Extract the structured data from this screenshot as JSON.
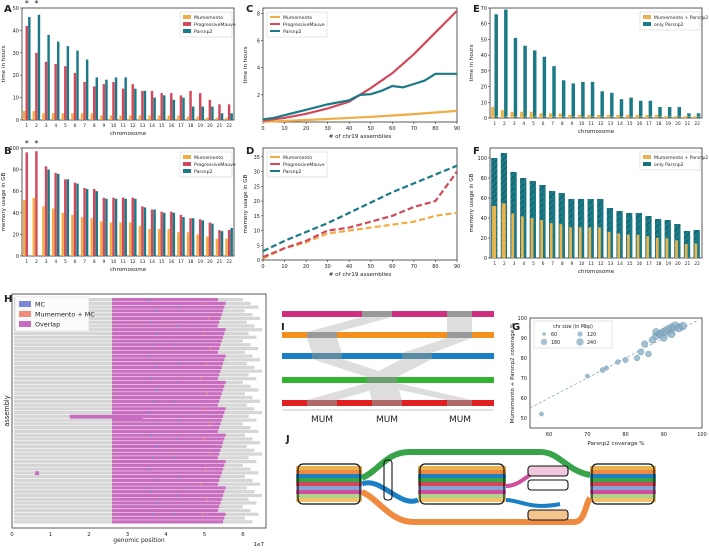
{
  "colors": {
    "mumemento": "#f0ad45",
    "pmauve": "#d1495b",
    "parsnp2": "#1b7a86",
    "combo": "#e8b450",
    "only": "#1b7a86",
    "mc": "#7e89d6",
    "mmc": "#ef8c7a",
    "overlap": "#c96cbf",
    "grey": "#d6d6d6",
    "scatter": "#7da5bd"
  },
  "panels": {
    "A": "A",
    "B": "B",
    "C": "C",
    "D": "D",
    "E": "E",
    "F": "F",
    "G": "G",
    "H": "H",
    "I": "I",
    "J": "J"
  },
  "chart_data": [
    {
      "id": "A",
      "type": "bar",
      "title": "",
      "categories": [
        "1",
        "2",
        "3",
        "4",
        "5",
        "6",
        "7",
        "8",
        "9",
        "10",
        "11",
        "12",
        "13",
        "14",
        "15",
        "16",
        "17",
        "18",
        "19",
        "20",
        "21",
        "22"
      ],
      "xlabel": "chromosome",
      "ylabel": "time in hours",
      "ylim": [
        0,
        50
      ],
      "yticks": [
        0,
        10,
        20,
        30,
        40,
        50
      ],
      "legend": {
        "position": "top-right",
        "entries": [
          "Mumemento",
          "ProgressiveMauve",
          "Parsnp2"
        ]
      },
      "markers": {
        "categories": [
          "1",
          "2"
        ],
        "symbol": "*"
      },
      "series": [
        {
          "name": "Mumemento",
          "values": [
            4,
            4,
            3,
            3,
            3,
            3,
            3,
            3,
            2,
            2,
            2,
            2,
            2,
            2,
            2,
            2,
            2,
            1.5,
            1.5,
            1,
            1,
            1
          ]
        },
        {
          "name": "ProgressiveMauve",
          "values": [
            42,
            30,
            26,
            25,
            24,
            21,
            17,
            15,
            16,
            17,
            14,
            16,
            13,
            13,
            12,
            12,
            11,
            13,
            12,
            9,
            7,
            7
          ]
        },
        {
          "name": "Parsnp2",
          "values": [
            46,
            47,
            38,
            35,
            33,
            31,
            27,
            19,
            18,
            19,
            19,
            14,
            13,
            10,
            11,
            9,
            10,
            6,
            6,
            6,
            3,
            3
          ]
        }
      ]
    },
    {
      "id": "B",
      "type": "bar",
      "title": "",
      "categories": [
        "1",
        "2",
        "3",
        "4",
        "5",
        "6",
        "7",
        "8",
        "9",
        "10",
        "11",
        "12",
        "13",
        "14",
        "15",
        "16",
        "17",
        "18",
        "19",
        "20",
        "21",
        "22"
      ],
      "xlabel": "chromosome",
      "ylabel": "memory usage in GB",
      "ylim": [
        0,
        100
      ],
      "yticks": [
        0,
        20,
        40,
        60,
        80,
        100
      ],
      "legend": {
        "position": "top-right",
        "entries": [
          "Mumemento",
          "ProgressiveMauve",
          "Parsnp2"
        ]
      },
      "markers": {
        "categories": [
          "1",
          "2"
        ],
        "symbol": "*"
      },
      "series": [
        {
          "name": "Mumemento",
          "values": [
            52,
            54,
            46,
            44,
            40,
            38,
            36,
            35,
            32,
            31,
            31,
            31,
            28,
            25,
            25,
            25,
            22,
            22,
            20,
            18,
            16,
            16
          ]
        },
        {
          "name": "ProgressiveMauve",
          "values": [
            96,
            97,
            83,
            77,
            71,
            68,
            63,
            62,
            54,
            54,
            54,
            54,
            46,
            43,
            41,
            41,
            38,
            35,
            34,
            31,
            24,
            24
          ]
        },
        {
          "name": "Parsnp2",
          "values": [
            0,
            0,
            80,
            76,
            71,
            67,
            62,
            60,
            53,
            53,
            53,
            53,
            45,
            43,
            40,
            40,
            36,
            35,
            33,
            30,
            23,
            26
          ]
        }
      ]
    },
    {
      "id": "C",
      "type": "line",
      "xlabel": "# of chr19 assemblies",
      "ylabel": "time in hours",
      "xlim": [
        0,
        90
      ],
      "ylim": [
        0,
        8.4
      ],
      "xticks": [
        0,
        10,
        20,
        30,
        40,
        50,
        60,
        70,
        80,
        90
      ],
      "yticks": [
        2,
        4,
        6,
        8
      ],
      "legend": {
        "position": "top-left",
        "entries": [
          "Mumemento",
          "ProgressiveMauve",
          "Parsnp2"
        ]
      },
      "series": [
        {
          "name": "Mumemento",
          "x": [
            0,
            10,
            20,
            30,
            40,
            50,
            60,
            70,
            80,
            90
          ],
          "y": [
            0.02,
            0.08,
            0.15,
            0.22,
            0.3,
            0.38,
            0.48,
            0.58,
            0.7,
            0.82
          ]
        },
        {
          "name": "ProgressiveMauve",
          "x": [
            0,
            10,
            20,
            30,
            40,
            50,
            60,
            70,
            80,
            90
          ],
          "y": [
            0.1,
            0.3,
            0.6,
            1.0,
            1.5,
            2.5,
            3.6,
            5.0,
            6.6,
            8.2
          ]
        },
        {
          "name": "Parsnp2",
          "x": [
            0,
            5,
            10,
            15,
            20,
            25,
            30,
            35,
            40,
            45,
            50,
            55,
            60,
            65,
            70,
            75,
            80,
            85,
            90
          ],
          "y": [
            0.2,
            0.3,
            0.5,
            0.7,
            0.9,
            1.1,
            1.3,
            1.45,
            1.6,
            2.0,
            2.05,
            2.3,
            2.65,
            2.55,
            2.8,
            3.05,
            3.55,
            3.55,
            3.55
          ]
        }
      ]
    },
    {
      "id": "D",
      "type": "line",
      "xlabel": "# of chr19 assemblies",
      "ylabel": "memory usage in GB",
      "xlim": [
        0,
        90
      ],
      "ylim": [
        0,
        38
      ],
      "xticks": [
        0,
        10,
        20,
        30,
        40,
        50,
        60,
        70,
        80,
        90
      ],
      "yticks": [
        0,
        5,
        10,
        15,
        20,
        25,
        30,
        35
      ],
      "legend": {
        "position": "top-left",
        "entries": [
          "Mumemento",
          "ProgressiveMauve",
          "Parsnp2"
        ]
      },
      "series": [
        {
          "name": "Mumemento",
          "x": [
            0,
            10,
            20,
            30,
            40,
            50,
            60,
            70,
            80,
            90
          ],
          "y": [
            0.5,
            4,
            6,
            9,
            10,
            11,
            12,
            13,
            15,
            16
          ]
        },
        {
          "name": "ProgressiveMauve",
          "x": [
            0,
            10,
            20,
            30,
            40,
            50,
            60,
            70,
            80,
            90
          ],
          "y": [
            1,
            4,
            6.5,
            10,
            11,
            13,
            15,
            18,
            20,
            30
          ]
        },
        {
          "name": "Parsnp2",
          "x": [
            0,
            10,
            20,
            30,
            40,
            50,
            60,
            70,
            80,
            90
          ],
          "y": [
            3,
            6.5,
            9.5,
            12.5,
            16,
            19.5,
            23,
            26,
            29,
            32
          ]
        }
      ]
    },
    {
      "id": "E",
      "type": "bar",
      "xlabel": "chromosome",
      "ylabel": "time in hours",
      "ylim": [
        0,
        70
      ],
      "yticks": [
        0,
        10,
        20,
        30,
        40,
        50,
        60,
        70
      ],
      "categories": [
        "1",
        "2",
        "3",
        "4",
        "5",
        "6",
        "7",
        "8",
        "9",
        "10",
        "11",
        "12",
        "13",
        "14",
        "15",
        "16",
        "17",
        "18",
        "19",
        "20",
        "21",
        "22"
      ],
      "legend": {
        "position": "top-right",
        "entries": [
          "Mumemento + Parsnp2",
          "only Parsnp2"
        ]
      },
      "series": [
        {
          "name": "Mumemento + Parsnp2",
          "values": [
            7,
            5,
            4,
            4,
            4,
            3,
            3,
            3,
            2,
            2,
            2,
            2,
            2,
            2,
            2,
            2,
            2,
            2,
            1,
            1,
            1,
            1
          ]
        },
        {
          "name": "only Parsnp2",
          "values": [
            66,
            69,
            51,
            46,
            43,
            39,
            33,
            24,
            22,
            23,
            23,
            17,
            16,
            12,
            13,
            11,
            11,
            7,
            7,
            7,
            3,
            3
          ]
        }
      ]
    },
    {
      "id": "F",
      "type": "bar",
      "xlabel": "chromosome",
      "ylabel": "memory usage in GB",
      "ylim": [
        0,
        110
      ],
      "yticks": [
        0,
        20,
        40,
        60,
        80,
        100
      ],
      "categories": [
        "1",
        "2",
        "3",
        "4",
        "5",
        "6",
        "7",
        "8",
        "9",
        "10",
        "11",
        "12",
        "13",
        "14",
        "15",
        "16",
        "17",
        "18",
        "19",
        "20",
        "21",
        "22"
      ],
      "legend": {
        "position": "top-right",
        "entries": [
          "Mumemento + Parsnp2",
          "only Parsnp2"
        ]
      },
      "series": [
        {
          "name": "Mumemento + Parsnp2",
          "values": [
            100,
            105,
            86,
            80,
            77,
            73,
            67,
            65,
            59,
            59,
            59,
            59,
            50,
            47,
            45,
            45,
            42,
            39,
            38,
            34,
            27,
            28
          ]
        },
        {
          "name": "only Parsnp2",
          "values": [
            0,
            0,
            80,
            76,
            71,
            67,
            62,
            60,
            53,
            53,
            53,
            53,
            45,
            43,
            40,
            40,
            36,
            35,
            33,
            30,
            23,
            26
          ]
        }
      ]
    },
    {
      "id": "G",
      "type": "scatter",
      "xlabel": "Parsnp2 coverage %",
      "ylabel": "Mumemento + Parsnp2 coverage %",
      "xlim": [
        55,
        100
      ],
      "ylim": [
        45,
        100
      ],
      "xticks": [
        60,
        70,
        80,
        90,
        100
      ],
      "yticks": [
        50,
        60,
        70,
        80,
        90,
        100
      ],
      "legend": {
        "position": "top-left",
        "title": "chr size (in Mbp)",
        "entries": [
          "60",
          "120",
          "180",
          "240"
        ]
      },
      "points": [
        {
          "x": 58,
          "y": 52,
          "s": 60
        },
        {
          "x": 70,
          "y": 71,
          "s": 60
        },
        {
          "x": 74,
          "y": 74,
          "s": 90
        },
        {
          "x": 75,
          "y": 75,
          "s": 70
        },
        {
          "x": 78,
          "y": 78,
          "s": 80
        },
        {
          "x": 80,
          "y": 79,
          "s": 100
        },
        {
          "x": 83,
          "y": 80,
          "s": 110
        },
        {
          "x": 84,
          "y": 83,
          "s": 130
        },
        {
          "x": 85,
          "y": 87,
          "s": 140
        },
        {
          "x": 86,
          "y": 82,
          "s": 120
        },
        {
          "x": 87,
          "y": 89,
          "s": 150
        },
        {
          "x": 88,
          "y": 91,
          "s": 180
        },
        {
          "x": 89,
          "y": 92,
          "s": 200
        },
        {
          "x": 90,
          "y": 93,
          "s": 220
        },
        {
          "x": 91,
          "y": 94,
          "s": 240
        },
        {
          "x": 92,
          "y": 92,
          "s": 190
        },
        {
          "x": 92,
          "y": 95,
          "s": 230
        },
        {
          "x": 93,
          "y": 96,
          "s": 250
        },
        {
          "x": 94,
          "y": 95,
          "s": 210
        },
        {
          "x": 90,
          "y": 90,
          "s": 160
        },
        {
          "x": 88,
          "y": 93,
          "s": 170
        },
        {
          "x": 95,
          "y": 96,
          "s": 200
        }
      ]
    },
    {
      "id": "H",
      "type": "other",
      "xlabel": "genomic position",
      "ylabel": "assembly",
      "xlim": [
        0,
        6.6
      ],
      "xticks": [
        "0",
        "1",
        "2",
        "3",
        "4",
        "5",
        "6"
      ],
      "xscale_label": "1e7",
      "legend": {
        "position": "top-left",
        "entries": [
          "MC",
          "Mumemento + MC",
          "Overlap"
        ]
      }
    },
    {
      "id": "I",
      "type": "other",
      "labels": [
        "MUM",
        "MUM",
        "MUM"
      ]
    },
    {
      "id": "J",
      "type": "other"
    }
  ]
}
